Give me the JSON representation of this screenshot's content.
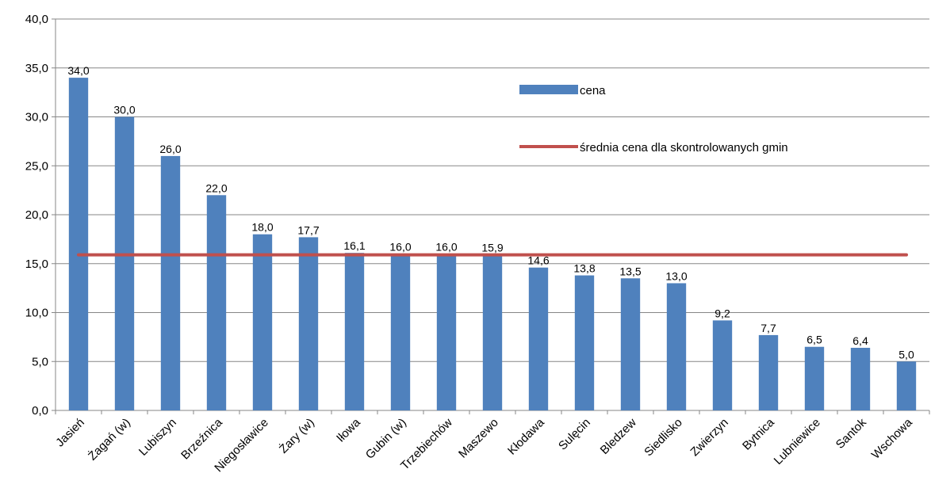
{
  "chart_data": {
    "type": "bar",
    "categories": [
      "Jasień",
      "Żagań (w)",
      "Lubiszyn",
      "Brzeźnica",
      "Niegosławice",
      "Żary (w)",
      "Iłowa",
      "Gubin (w)",
      "Trzebiechów",
      "Maszewo",
      "Kłodawa",
      "Sulęcin",
      "Bledzew",
      "Siedlisko",
      "Zwierzyn",
      "Bytnica",
      "Lubniewice",
      "Santok",
      "Wschowa"
    ],
    "series": [
      {
        "name": "cena",
        "type": "bar",
        "color": "#4F81BD",
        "values": [
          34.0,
          30.0,
          26.0,
          22.0,
          18.0,
          17.7,
          16.1,
          16.0,
          16.0,
          15.9,
          14.6,
          13.8,
          13.5,
          13.0,
          9.2,
          7.7,
          6.5,
          6.4,
          5.0
        ],
        "labels": [
          "34,0",
          "30,0",
          "26,0",
          "22,0",
          "18,0",
          "17,7",
          "16,1",
          "16,0",
          "16,0",
          "15,9",
          "14,6",
          "13,8",
          "13,5",
          "13,0",
          "9,2",
          "7,7",
          "6,5",
          "6,4",
          "5,0"
        ]
      },
      {
        "name": "średnia cena dla skontrolowanych gmin",
        "type": "line",
        "color": "#C0504D",
        "value": 15.9
      }
    ],
    "y_ticks": [
      "0,0",
      "5,0",
      "10,0",
      "15,0",
      "20,0",
      "25,0",
      "30,0",
      "35,0",
      "40,0"
    ],
    "ylim": [
      0,
      40
    ],
    "title": "",
    "xlabel": "",
    "ylabel": "",
    "grid": true,
    "legend_position": "top-right"
  }
}
